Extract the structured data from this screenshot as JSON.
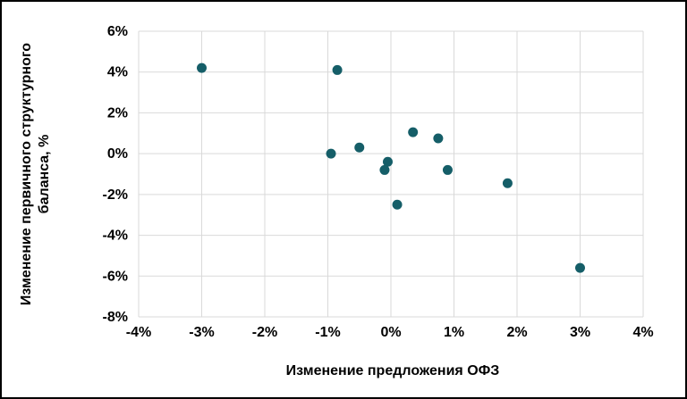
{
  "chart_data": {
    "type": "scatter",
    "title": "",
    "xlabel": "Изменение предложения ОФЗ",
    "ylabel": "Изменение первичного структурного баланса, %",
    "xlim": [
      -4,
      4
    ],
    "ylim": [
      -8,
      6
    ],
    "x_ticks": [
      -4,
      -3,
      -2,
      -1,
      0,
      1,
      2,
      3,
      4
    ],
    "y_ticks": [
      6,
      4,
      2,
      0,
      -2,
      -4,
      -6,
      -8
    ],
    "tick_suffix": "%",
    "grid": true,
    "legend_position": "none",
    "colors": {
      "point": "#155e68",
      "gridline": "#d9d9d9",
      "text": "#000000",
      "background": "#ffffff",
      "frame_border": "#000000"
    },
    "points": [
      [
        -3.0,
        4.2
      ],
      [
        -0.85,
        4.1
      ],
      [
        -0.95,
        0.0
      ],
      [
        -0.5,
        0.3
      ],
      [
        -0.05,
        -0.4
      ],
      [
        -0.1,
        -0.8
      ],
      [
        0.1,
        -2.5
      ],
      [
        0.35,
        1.05
      ],
      [
        0.75,
        0.75
      ],
      [
        0.9,
        -0.8
      ],
      [
        1.85,
        -1.45
      ],
      [
        3.0,
        -5.6
      ]
    ]
  }
}
